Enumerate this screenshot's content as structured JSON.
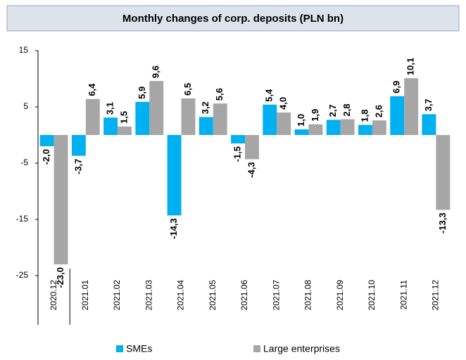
{
  "chart_data": {
    "type": "bar",
    "title": "Monthly changes of corp. deposits (PLN bn)",
    "categories": [
      "2020.12",
      "2021.01",
      "2021.02",
      "2021.03",
      "2021.04",
      "2021.05",
      "2021.06",
      "2021.07",
      "2021.08",
      "2021.09",
      "2021.10",
      "2021.11",
      "2021.12"
    ],
    "series": [
      {
        "name": "SMEs",
        "color": "#00b0f0",
        "values": [
          -2.0,
          -3.7,
          3.1,
          5.9,
          -14.3,
          3.2,
          -1.5,
          5.4,
          1.0,
          2.7,
          1.8,
          6.9,
          3.7
        ],
        "value_labels": [
          "-2,0",
          "-3,7",
          "3,1",
          "5,9",
          "-14,3",
          "3,2",
          "-1,5",
          "5,4",
          "1,0",
          "2,7",
          "1,8",
          "6,9",
          "3,7"
        ]
      },
      {
        "name": "Large enterprises",
        "color": "#a6a6a6",
        "values": [
          -23.0,
          6.4,
          1.5,
          9.6,
          6.5,
          5.6,
          -4.3,
          4.0,
          1.9,
          2.8,
          2.6,
          10.1,
          -13.3
        ],
        "value_labels": [
          "-23,0",
          "6,4",
          "1,5",
          "9,6",
          "6,5",
          "5,6",
          "-4,3",
          "4,0",
          "1,9",
          "2,8",
          "2,6",
          "10,1",
          "-13,3"
        ]
      }
    ],
    "ylim": [
      -25,
      15
    ],
    "yticks": [
      -25,
      -15,
      -5,
      5,
      15
    ],
    "grid": false,
    "legend": "bottom"
  }
}
